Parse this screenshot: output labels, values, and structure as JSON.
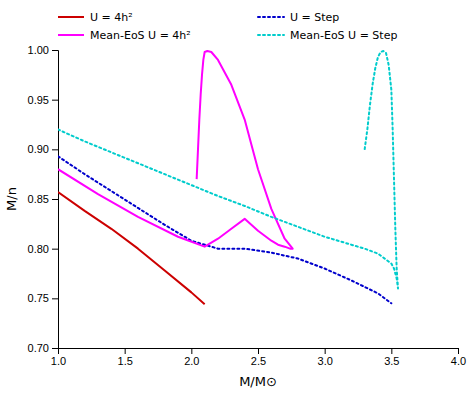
{
  "chart_data": {
    "type": "line",
    "xlabel": "M/M⊙",
    "ylabel": "M/n",
    "xlim": [
      1,
      4
    ],
    "ylim": [
      0.7,
      1.0
    ],
    "xticks": [
      {
        "value": 1,
        "label": "1.0"
      },
      1.5,
      {
        "value": 2,
        "label": "2.0"
      },
      2.5,
      {
        "value": 3,
        "label": "3.0"
      },
      3.5,
      {
        "value": 4,
        "label": "4.0"
      }
    ],
    "yticks": [
      {
        "value": 0.7,
        "label": "0.70"
      },
      0.75,
      {
        "value": 0.8,
        "label": "0.80"
      },
      0.85,
      {
        "value": 0.9,
        "label": "0.90"
      },
      0.95,
      {
        "value": 1.0,
        "label": "1.00"
      }
    ],
    "grid": false,
    "legend": "upper right",
    "series": [
      {
        "name": "U = 4h²",
        "color": "#cc0000",
        "line_style": "solid",
        "x": [
          1.0,
          1.2,
          1.4,
          1.6,
          1.8,
          2.0,
          2.1
        ],
        "values": [
          0.857,
          0.838,
          0.82,
          0.8,
          0.778,
          0.756,
          0.744
        ]
      },
      {
        "name": "U = Step",
        "color": "#0000cc",
        "line_style": "dotted",
        "x": [
          1.0,
          1.2,
          1.4,
          1.6,
          1.8,
          2.0,
          2.2,
          2.4,
          2.6,
          2.8,
          3.0,
          3.2,
          3.4,
          3.5
        ],
        "values": [
          0.893,
          0.875,
          0.858,
          0.841,
          0.824,
          0.808,
          0.8,
          0.8,
          0.796,
          0.79,
          0.78,
          0.768,
          0.755,
          0.745
        ]
      },
      {
        "name": "Mean-EoS U = 4h²",
        "color": "#ff00ff",
        "line_style": "solid",
        "x": [
          1.0,
          1.3,
          1.6,
          1.9,
          2.1,
          2.2,
          2.3,
          2.4,
          2.5,
          2.6,
          2.65,
          2.7,
          2.72,
          2.74,
          2.76,
          2.76,
          2.7,
          2.6,
          2.5,
          2.4,
          2.3,
          2.2,
          2.15,
          2.12,
          2.1,
          2.09,
          2.08,
          2.07,
          2.06,
          2.05,
          2.04
        ],
        "values": [
          0.88,
          0.855,
          0.832,
          0.812,
          0.802,
          0.81,
          0.82,
          0.83,
          0.818,
          0.808,
          0.804,
          0.802,
          0.801,
          0.8,
          0.8,
          0.8,
          0.81,
          0.84,
          0.88,
          0.93,
          0.965,
          0.99,
          0.998,
          0.999,
          0.998,
          0.99,
          0.975,
          0.955,
          0.93,
          0.9,
          0.87
        ]
      },
      {
        "name": "Mean-EoS U = Step",
        "color": "#00cccc",
        "line_style": "dotted",
        "x": [
          1.0,
          1.2,
          1.4,
          1.6,
          1.8,
          2.0,
          2.2,
          2.4,
          2.6,
          2.8,
          3.0,
          3.1,
          3.2,
          3.3,
          3.4,
          3.45,
          3.5,
          3.52,
          3.54,
          3.55,
          3.55,
          3.54,
          3.53,
          3.52,
          3.51,
          3.5,
          3.48,
          3.46,
          3.44,
          3.42,
          3.4,
          3.38,
          3.36,
          3.34,
          3.32,
          3.3
        ],
        "values": [
          0.92,
          0.908,
          0.897,
          0.886,
          0.875,
          0.864,
          0.853,
          0.843,
          0.832,
          0.822,
          0.812,
          0.808,
          0.804,
          0.8,
          0.795,
          0.79,
          0.785,
          0.78,
          0.77,
          0.76,
          0.76,
          0.78,
          0.82,
          0.87,
          0.92,
          0.96,
          0.985,
          0.997,
          0.999,
          0.998,
          0.993,
          0.982,
          0.966,
          0.945,
          0.92,
          0.9
        ]
      }
    ]
  }
}
